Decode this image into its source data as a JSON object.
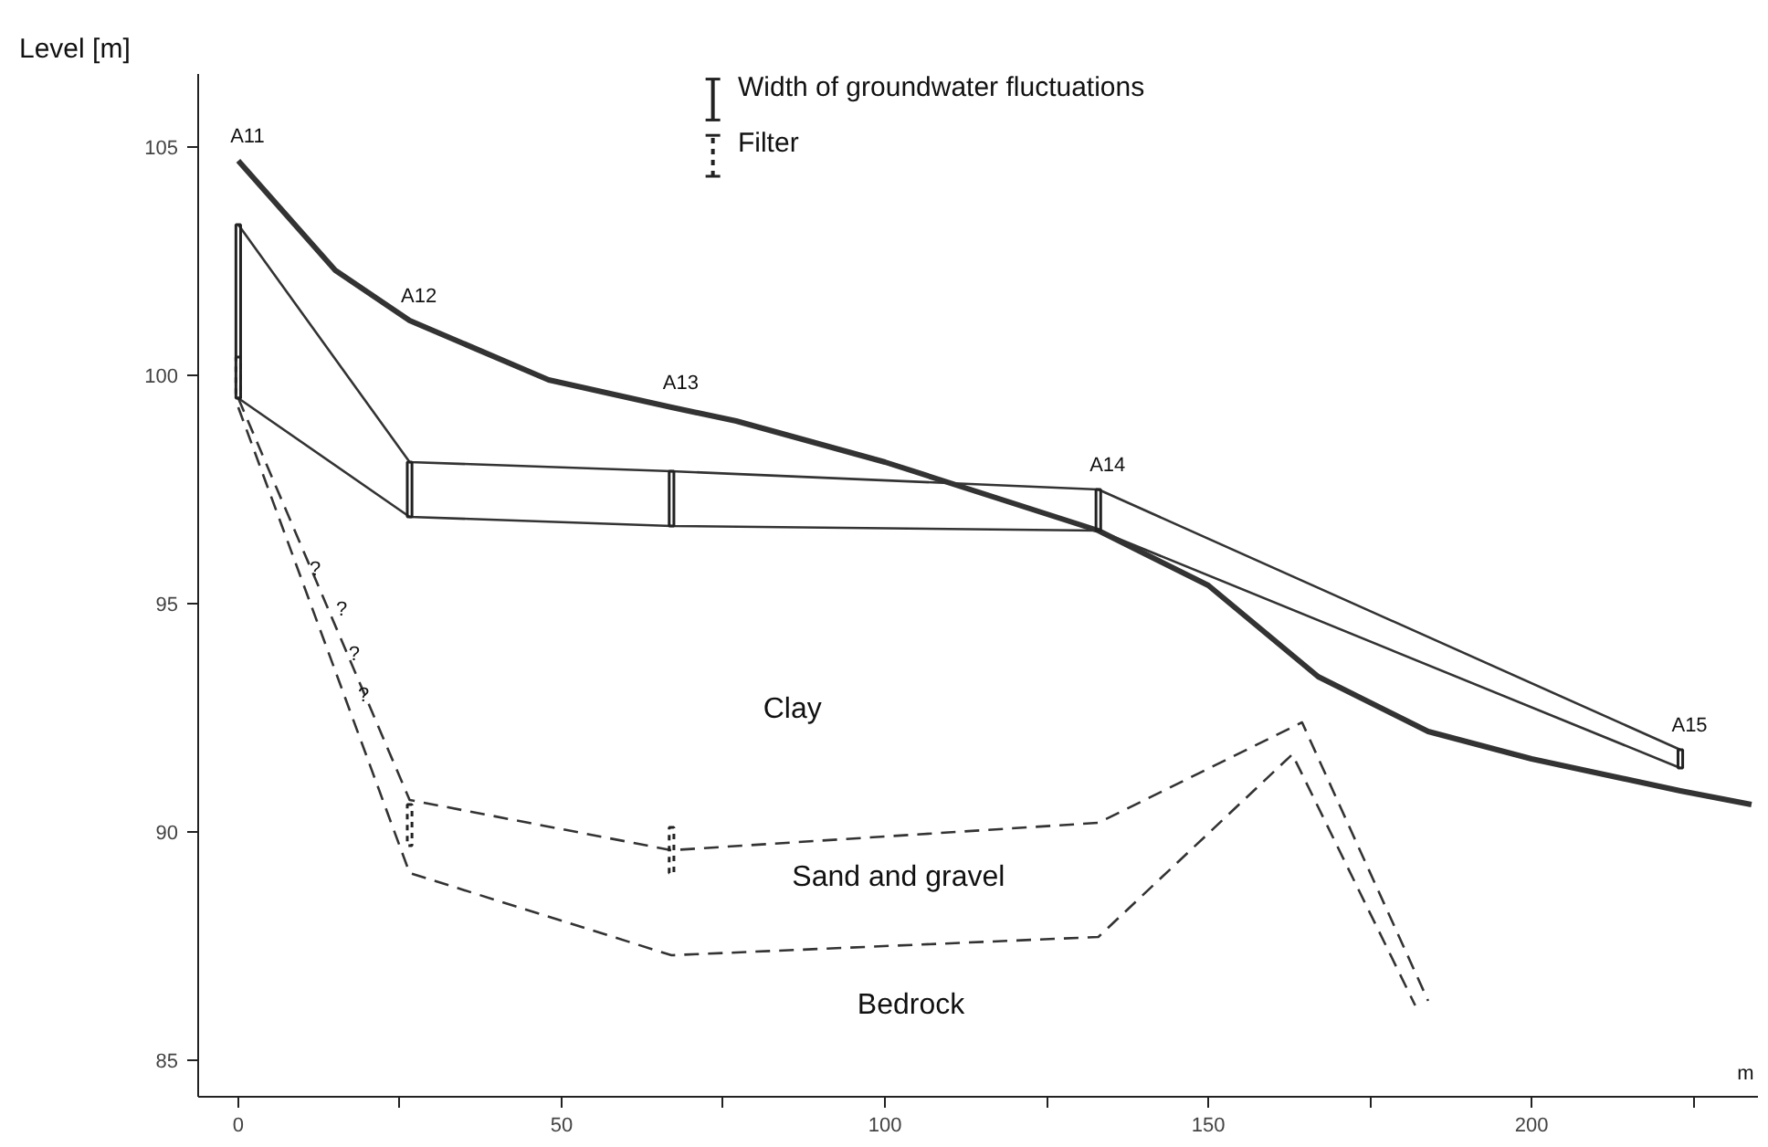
{
  "chart_data": {
    "type": "line",
    "ylabel": "Level [m]",
    "xlabel": "m",
    "xlim": [
      -6.2,
      235
    ],
    "ylim": [
      84.2,
      106.6
    ],
    "xticks": [
      0,
      {
        "value": 25,
        "label": null
      },
      50,
      {
        "value": 75,
        "label": null
      },
      100,
      {
        "value": 125,
        "label": null
      },
      150,
      {
        "value": 175,
        "label": null
      },
      200,
      {
        "value": 225,
        "label": null
      }
    ],
    "yticks": [
      85,
      90,
      95,
      100,
      105
    ],
    "grid": false,
    "legend": "top",
    "marker": "none",
    "series": [
      {
        "color": "#333333",
        "line_style": "solid",
        "x": [
          0,
          15,
          26.5,
          48,
          67,
          77,
          100,
          133,
          150,
          167,
          184,
          200,
          223,
          234
        ],
        "values": [
          104.7,
          102.3,
          101.2,
          99.9,
          99.3,
          99.0,
          98.1,
          96.6,
          95.4,
          93.4,
          92.2,
          91.6,
          90.9,
          90.6
        ]
      },
      {
        "color": "#333333",
        "line_style": "solid",
        "x": [
          0,
          26.5,
          67,
          133,
          223
        ],
        "values": [
          103.3,
          98.1,
          97.9,
          97.5,
          91.8
        ]
      },
      {
        "color": "#333333",
        "line_style": "solid",
        "x": [
          0,
          26.5,
          67,
          133,
          223
        ],
        "values": [
          99.5,
          96.9,
          96.7,
          96.6,
          91.4
        ]
      },
      {
        "color": "#333333",
        "line_style": "dashed",
        "x": [
          0,
          26.5,
          67,
          133,
          164.5,
          184
        ],
        "values": [
          99.5,
          90.7,
          89.6,
          90.2,
          92.4,
          86.3
        ]
      },
      {
        "color": "#333333",
        "line_style": "dashed",
        "x": [
          0,
          26.5,
          67,
          133,
          163,
          182
        ],
        "values": [
          99.3,
          89.1,
          87.3,
          87.7,
          91.7,
          86.2
        ]
      },
      {
        "type": "bar",
        "name": "Width of groundwater fluctuations",
        "color": "#222222",
        "line_style": "solid",
        "x": [
          0,
          26.5,
          67,
          133,
          223
        ],
        "base": [
          99.5,
          96.9,
          96.7,
          96.6,
          91.4
        ],
        "values": [
          3.8,
          1.2,
          1.2,
          0.9,
          0.4
        ]
      },
      {
        "type": "bar",
        "name": "Filter",
        "color": "#222222",
        "line_style": "dotted",
        "x": [
          0,
          26.5,
          67
        ],
        "base": [
          99.5,
          89.7,
          89.1
        ],
        "values": [
          0.9,
          0.9,
          1.0
        ]
      }
    ],
    "annotations": [
      {
        "text": "A11",
        "x": 0,
        "y": 104.7
      },
      {
        "text": "A12",
        "x": 26.5,
        "y": 101.2
      },
      {
        "text": "A13",
        "x": 67,
        "y": 99.3
      },
      {
        "text": "A14",
        "x": 133,
        "y": 97.5
      },
      {
        "text": "A15",
        "x": 223,
        "y": 91.8
      },
      "?",
      "?",
      "?",
      "?",
      "Clay",
      "Sand and gravel",
      "Bedrock"
    ]
  }
}
